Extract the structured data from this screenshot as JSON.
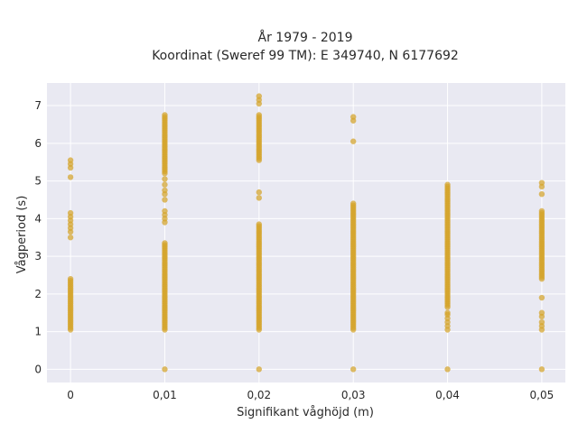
{
  "chart_data": {
    "type": "scatter",
    "title": "År 1979 - 2019",
    "subtitle": "Koordinat (Sweref 99 TM): E 349740, N 6177692",
    "xlabel": "Signifikant våghöjd (m)",
    "ylabel": "Vågperiod (s)",
    "x_ticks": [
      {
        "value": 0,
        "label": "0"
      },
      {
        "value": 0.01,
        "label": "0,01"
      },
      {
        "value": 0.02,
        "label": "0,02"
      },
      {
        "value": 0.03,
        "label": "0,03"
      },
      {
        "value": 0.04,
        "label": "0,04"
      },
      {
        "value": 0.05,
        "label": "0,05"
      }
    ],
    "y_ticks": [
      {
        "value": 0,
        "label": "0"
      },
      {
        "value": 1,
        "label": "1"
      },
      {
        "value": 2,
        "label": "2"
      },
      {
        "value": 3,
        "label": "3"
      },
      {
        "value": 4,
        "label": "4"
      },
      {
        "value": 5,
        "label": "5"
      },
      {
        "value": 6,
        "label": "6"
      },
      {
        "value": 7,
        "label": "7"
      }
    ],
    "xlim": [
      -0.0025,
      0.0525
    ],
    "ylim": [
      -0.35,
      7.6
    ],
    "grid": true,
    "background": "#e9e9f2",
    "marker_color": "#d4a42a",
    "series": [
      {
        "x_value": 0,
        "segments": [
          [
            1.05,
            2.4
          ]
        ],
        "points": [
          3.5,
          3.65,
          3.75,
          3.85,
          3.95,
          4.05,
          4.15,
          5.1,
          5.35,
          5.45,
          5.55
        ]
      },
      {
        "x_value": 0.01,
        "segments": [
          [
            1.05,
            3.35
          ],
          [
            5.2,
            6.75
          ]
        ],
        "points": [
          0,
          3.9,
          4.0,
          4.1,
          4.2,
          4.5,
          4.65,
          4.75,
          4.9,
          5.05
        ]
      },
      {
        "x_value": 0.02,
        "segments": [
          [
            1.05,
            3.85
          ],
          [
            5.55,
            6.75
          ]
        ],
        "points": [
          0,
          4.55,
          4.7,
          7.05,
          7.15,
          7.25
        ]
      },
      {
        "x_value": 0.03,
        "segments": [
          [
            1.05,
            4.4
          ]
        ],
        "points": [
          0,
          6.05,
          6.6,
          6.7
        ]
      },
      {
        "x_value": 0.04,
        "segments": [
          [
            1.65,
            4.9
          ]
        ],
        "points": [
          0,
          1.05,
          1.15,
          1.25,
          1.35,
          1.45,
          1.5
        ]
      },
      {
        "x_value": 0.05,
        "segments": [
          [
            2.4,
            4.2
          ]
        ],
        "points": [
          0,
          1.05,
          1.15,
          1.25,
          1.4,
          1.5,
          1.9,
          4.65,
          4.85,
          4.95
        ]
      }
    ]
  }
}
